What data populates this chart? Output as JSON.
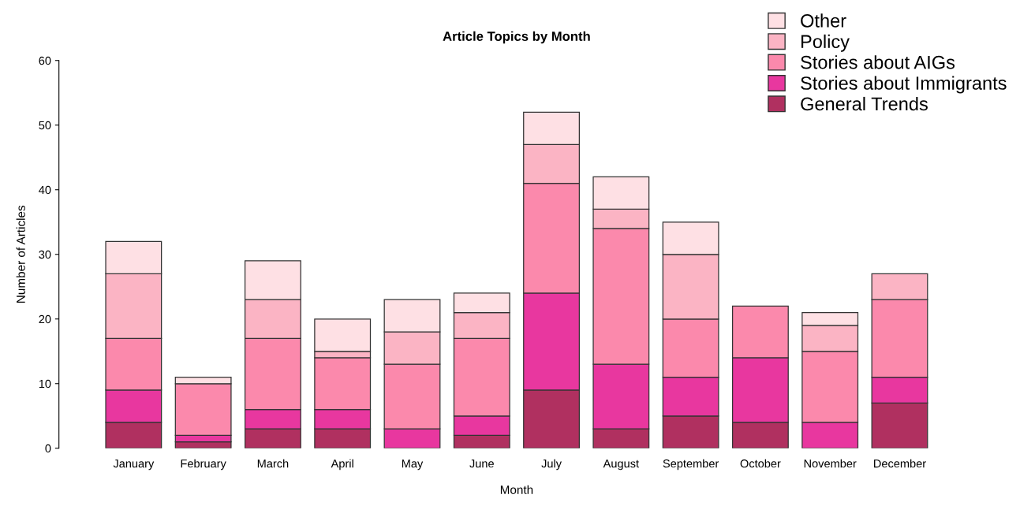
{
  "chart_data": {
    "type": "bar",
    "title": "Article Topics by Month",
    "xlabel": "Month",
    "ylabel": "Number of Articles",
    "stacked": true,
    "legend": "top right",
    "grid": false,
    "categories": [
      "January",
      "February",
      "March",
      "April",
      "May",
      "June",
      "July",
      "August",
      "September",
      "October",
      "November",
      "December"
    ],
    "ylim": [
      0,
      60
    ],
    "yticks": [
      0,
      10,
      20,
      30,
      40,
      50,
      60
    ],
    "series": [
      {
        "name": "General Trends",
        "color": "#b03060",
        "values": [
          4,
          1,
          3,
          3,
          0,
          2,
          9,
          3,
          5,
          4,
          0,
          7
        ]
      },
      {
        "name": "Stories about Immigrants",
        "color": "#e8379f",
        "values": [
          5,
          1,
          3,
          3,
          3,
          3,
          15,
          10,
          6,
          10,
          4,
          4
        ]
      },
      {
        "name": "Stories about AIGs",
        "color": "#fb89ac",
        "values": [
          8,
          8,
          11,
          8,
          10,
          12,
          17,
          21,
          9,
          8,
          11,
          12
        ]
      },
      {
        "name": "Policy",
        "color": "#fbb4c4",
        "values": [
          10,
          0,
          6,
          1,
          5,
          4,
          6,
          3,
          10,
          0,
          4,
          4
        ]
      },
      {
        "name": "Other",
        "color": "#fee0e4",
        "values": [
          5,
          1,
          6,
          5,
          5,
          3,
          5,
          5,
          5,
          0,
          2,
          0
        ]
      }
    ]
  }
}
